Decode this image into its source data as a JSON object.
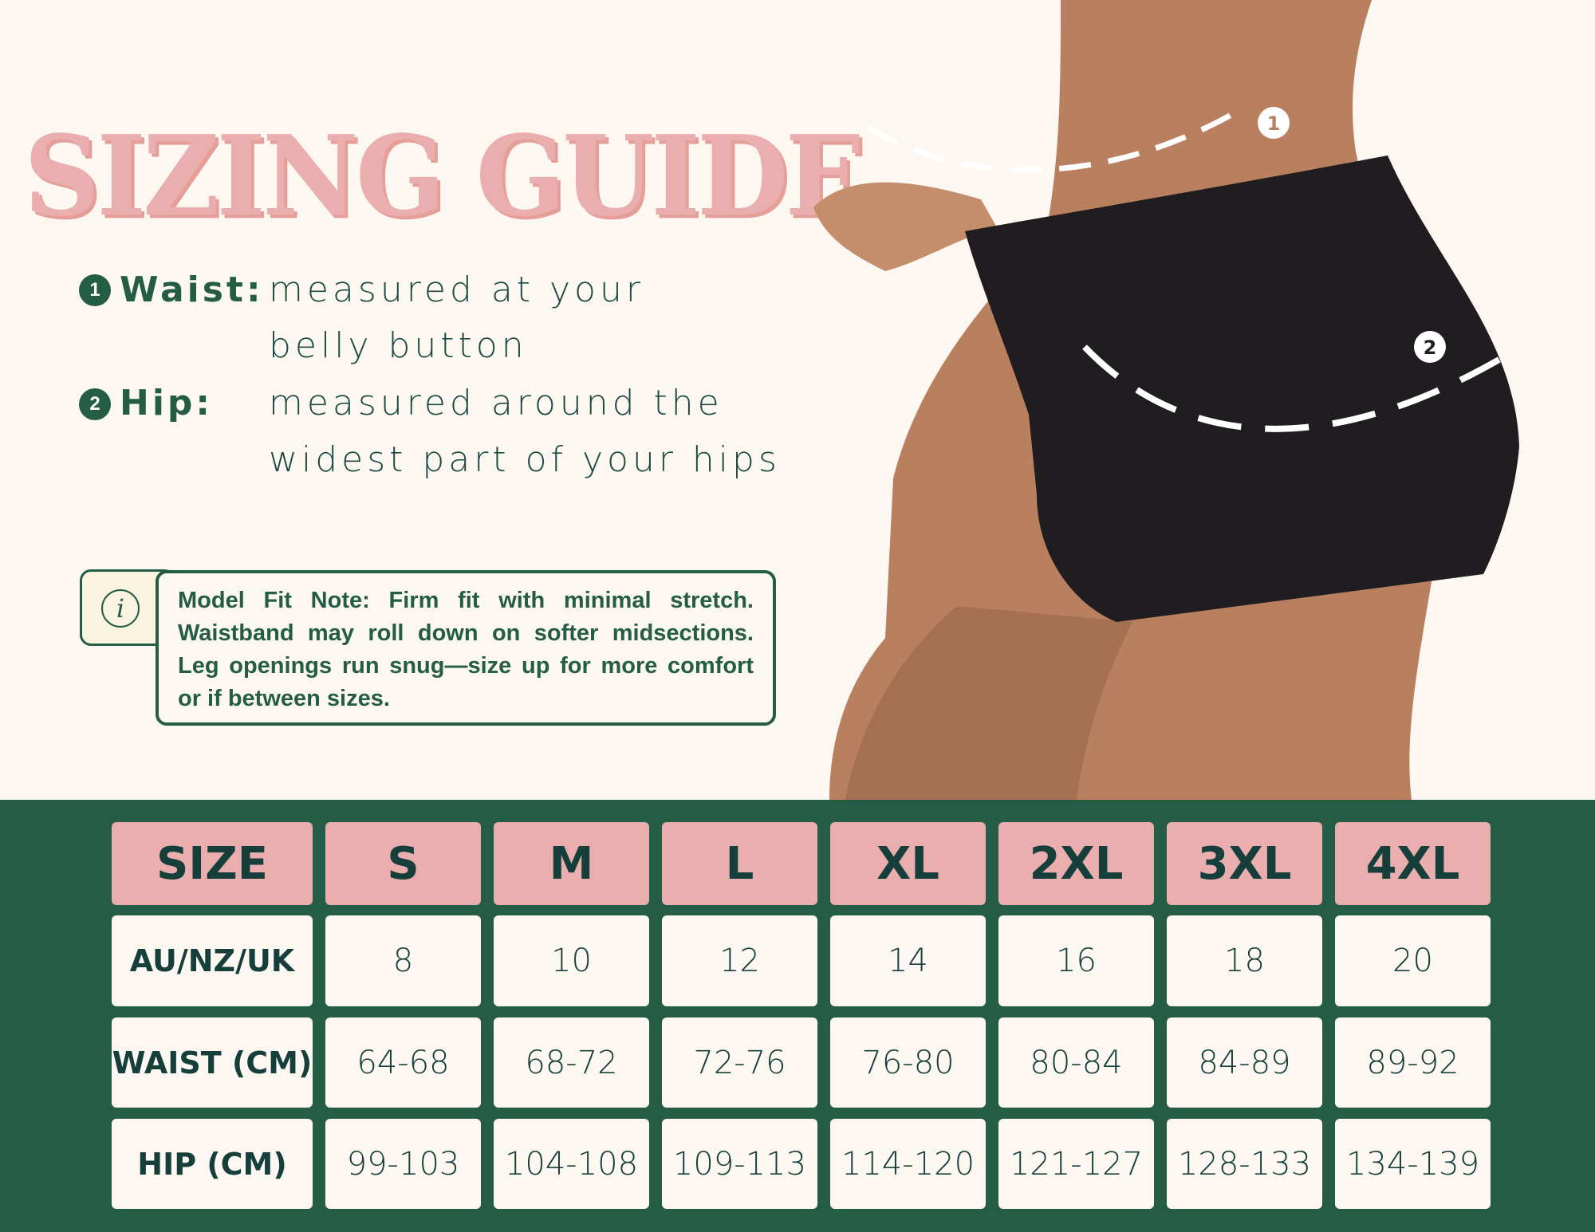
{
  "title": "SIZING GUIDE",
  "measurements": [
    {
      "number": "1",
      "label": "Waist:",
      "lines": [
        "measured at your",
        "belly button"
      ]
    },
    {
      "number": "2",
      "label": "Hip:",
      "lines": [
        "measured around the",
        "widest part of your hips"
      ]
    }
  ],
  "note": {
    "icon": "info-icon",
    "icon_glyph": "i",
    "text": "Model Fit Note: Firm fit with minimal stretch. Waistband may roll down on softer midsections. Leg openings run snug—size up for more comfort or if between sizes."
  },
  "photo": {
    "markers": [
      "1",
      "2"
    ]
  },
  "table": {
    "header": [
      "SIZE",
      "S",
      "M",
      "L",
      "XL",
      "2XL",
      "3XL",
      "4XL"
    ],
    "rows": [
      {
        "label": "AU/NZ/UK",
        "values": [
          "8",
          "10",
          "12",
          "14",
          "16",
          "18",
          "20"
        ]
      },
      {
        "label": "WAIST (CM)",
        "values": [
          "64-68",
          "68-72",
          "72-76",
          "76-80",
          "80-84",
          "84-89",
          "89-92"
        ]
      },
      {
        "label": "HIP (CM)",
        "values": [
          "99-103",
          "104-108",
          "109-113",
          "114-120",
          "121-127",
          "128-133",
          "134-139"
        ]
      }
    ]
  },
  "colors": {
    "pink": "#eaaeae",
    "green": "#245c45",
    "cream": "#fcf7f1",
    "text_dark": "#163f3c"
  }
}
